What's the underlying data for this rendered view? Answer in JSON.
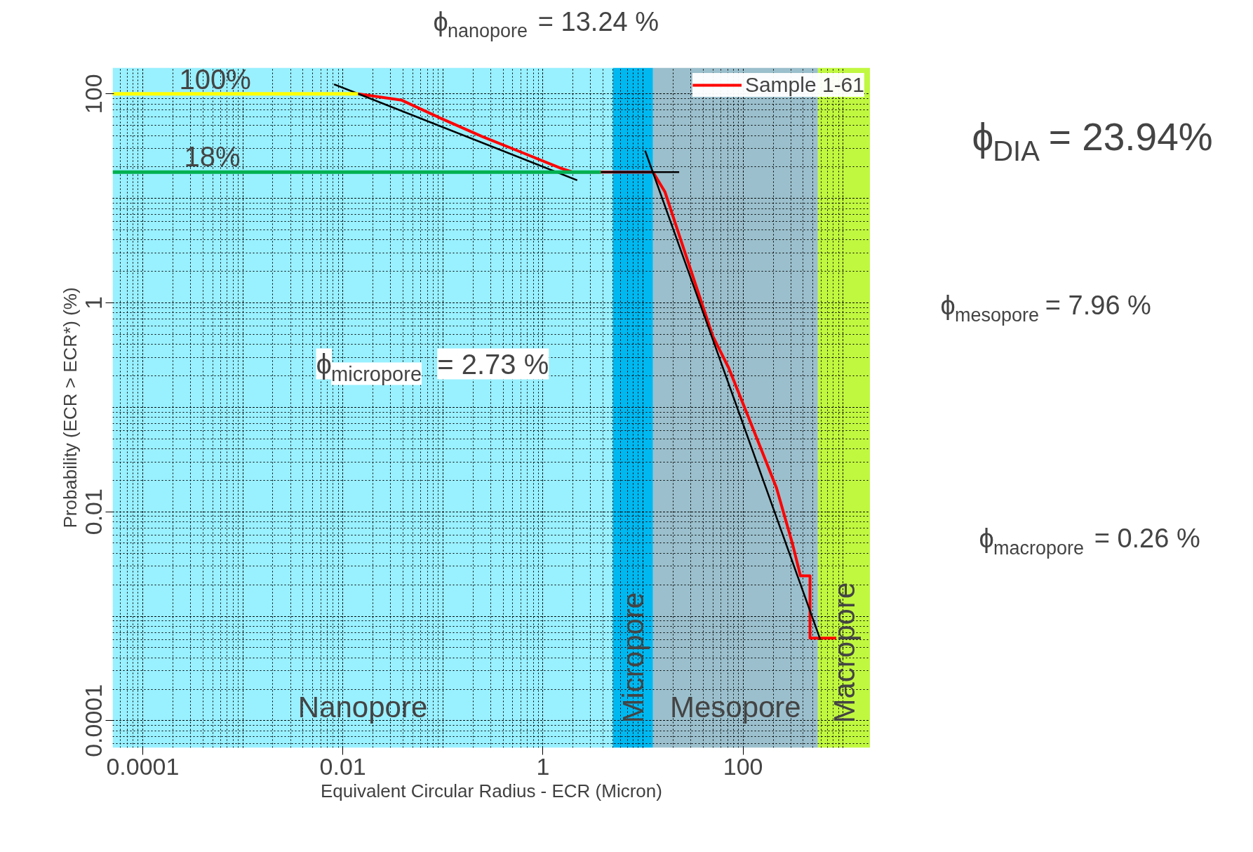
{
  "chart_data": {
    "type": "line",
    "xlabel": "Equivalent Circular Radius - ECR (Micron)",
    "ylabel": "Probability (ECR > ECR*) (%)",
    "log": "xy",
    "grid": true,
    "legend": "top right",
    "xlim": [
      5e-05,
      1870
    ],
    "ylim": [
      5.5e-05,
      178
    ],
    "xticks": [
      0.0001,
      0.01,
      1,
      100
    ],
    "yticks": [
      0.0001,
      0.01,
      1,
      100
    ],
    "series": [
      {
        "name": "Sample 1-61",
        "color": "#ff0000",
        "x": [
          0.0142,
          0.0389,
          0.0973,
          0.243,
          0.61,
          1.52,
          2.01,
          12.6,
          16.6,
          23.9,
          34.5,
          49.8,
          71.9,
          104,
          150,
          216,
          312,
          375,
          467,
          467,
          855
        ],
        "values": [
          100,
          86.9,
          57.9,
          39.3,
          27.6,
          19.4,
          17.8,
          17.8,
          11.5,
          3.98,
          1.38,
          0.481,
          0.238,
          0.0985,
          0.0408,
          0.0169,
          0.00493,
          0.00243,
          0.00243,
          0.000617,
          0.000617
        ]
      },
      {
        "color": "#000000",
        "x": [
          0.00817,
          2.2
        ],
        "values": [
          123.6,
          14.9
        ]
      },
      {
        "color": "#000000",
        "x": [
          10.5,
          593
        ],
        "values": [
          28.6,
          0.000594
        ]
      },
      {
        "color": "#ffff00",
        "x": [
          5e-05,
          0.0142
        ],
        "values": [
          100,
          100
        ]
      },
      {
        "color": "#00b050",
        "x": [
          5e-05,
          3.8
        ],
        "values": [
          17.8,
          17.8
        ]
      },
      {
        "color": "#000000",
        "x": [
          3.8,
          23
        ],
        "values": [
          17.8,
          17.8
        ]
      }
    ],
    "bands": [
      {
        "axis": "x",
        "from": 5e-05,
        "to": 5,
        "label": "Nanopore",
        "color": "#99f0ff"
      },
      {
        "axis": "x",
        "from": 5,
        "to": 12.6,
        "label": "Micropore",
        "color": "#00b8f0"
      },
      {
        "axis": "x",
        "from": 12.6,
        "to": 560,
        "label": "Mesopore",
        "color": "#9bbfcc"
      },
      {
        "axis": "x",
        "from": 560,
        "to": 1870,
        "label": "Macropore",
        "color": "#c0f840"
      }
    ],
    "annotations": [
      "100%",
      "18%",
      "ϕ$_{nanopore}$ = 13.24 %",
      "ϕ$_{micropore}$ = 2.73 %",
      "ϕ$_{mesopore}$ = 7.96 %",
      "ϕ$_{macropore}$ = 0.26 %",
      "ϕ$_{DIA}$ = 23.94%"
    ]
  }
}
